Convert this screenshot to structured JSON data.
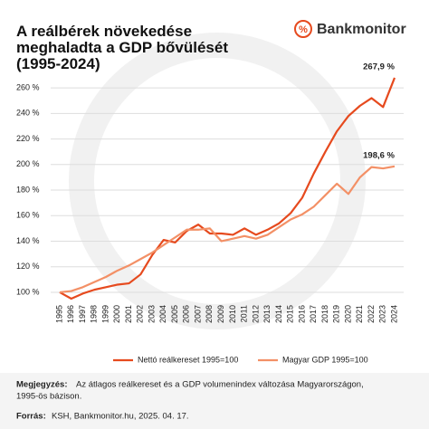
{
  "chart_data": {
    "type": "line",
    "title": [
      "A reálbérek növekedése",
      "meghaladta a GDP bővülését",
      "(1995-2024)"
    ],
    "brand": "Bankmonitor",
    "categories": [
      "1995",
      "1996",
      "1997",
      "1998",
      "1999",
      "2000",
      "2001",
      "2002",
      "2003",
      "2004",
      "2005",
      "2006",
      "2007",
      "2008",
      "2009",
      "2010",
      "2011",
      "2012",
      "2013",
      "2014",
      "2015",
      "2016",
      "2017",
      "2018",
      "2019",
      "2020",
      "2021",
      "2022",
      "2023",
      "2024"
    ],
    "series": [
      {
        "name": "Nettó reálkereset 1995=100",
        "color": "#e64a1e",
        "values": [
          100,
          95,
          99,
          102,
          104,
          106,
          107,
          114,
          129,
          141,
          139,
          148,
          153,
          146,
          146,
          145,
          150,
          145,
          149,
          154,
          162,
          174,
          193,
          210,
          226,
          238,
          246,
          252,
          245,
          267.9
        ],
        "value_labels": [
          null,
          null,
          null,
          null,
          null,
          null,
          null,
          null,
          null,
          null,
          null,
          null,
          null,
          null,
          null,
          null,
          null,
          null,
          null,
          null,
          null,
          null,
          null,
          null,
          null,
          null,
          null,
          null,
          null,
          "267,9 %"
        ]
      },
      {
        "name": "Magyar GDP 1995=100",
        "color": "#f39066",
        "values": [
          100,
          101,
          104,
          108,
          112,
          117,
          121,
          126,
          131,
          137,
          143,
          149,
          149,
          150,
          140,
          142,
          144,
          142,
          145,
          151,
          157,
          161,
          167,
          176,
          185,
          177,
          190,
          198,
          197,
          198.6
        ],
        "value_labels": [
          null,
          null,
          null,
          null,
          null,
          null,
          null,
          null,
          null,
          null,
          null,
          null,
          null,
          null,
          null,
          null,
          null,
          null,
          null,
          null,
          null,
          null,
          null,
          null,
          null,
          null,
          null,
          null,
          null,
          "198,6 %"
        ]
      }
    ],
    "ylim": [
      95,
      270
    ],
    "yticks": [
      {
        "value": 100,
        "label": "100 %"
      },
      {
        "value": 120,
        "label": "120 %"
      },
      {
        "value": 140,
        "label": "140 %"
      },
      {
        "value": 160,
        "label": "160 %"
      },
      {
        "value": 180,
        "label": "180 %"
      },
      {
        "value": 200,
        "label": "200 %"
      },
      {
        "value": 220,
        "label": "220 %"
      },
      {
        "value": 240,
        "label": "240 %"
      },
      {
        "value": 260,
        "label": "260 %"
      }
    ],
    "grid": true,
    "note_label": "Megjegyzés:",
    "note": [
      "Az átlagos reálkereset és a GDP volumenindex változása Magyarországon,",
      "1995-ös bázison."
    ],
    "source_label": "Forrás:",
    "source": "KSH, Bankmonitor.hu, 2025. 04. 17."
  }
}
